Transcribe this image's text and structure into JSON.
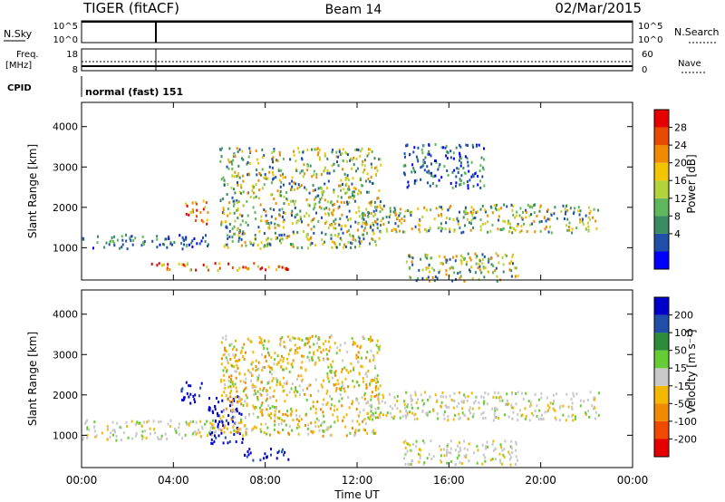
{
  "header": {
    "radar": "TIGER (fitACF)",
    "beam": "Beam 14",
    "date": "02/Mar/2015"
  },
  "strip_panels": {
    "nsky": {
      "label": "N.Sky",
      "ticks": [
        "10^5",
        "10^0"
      ]
    },
    "nsearch": {
      "label": "N.Search",
      "ticks": [
        "10^5",
        "10^0"
      ]
    },
    "freq": {
      "label_lines": [
        "Freq.",
        "[MHz]"
      ],
      "ticks": [
        "18",
        "8"
      ]
    },
    "nave": {
      "label": "Nave",
      "ticks": [
        "60",
        "0"
      ]
    },
    "cpid": {
      "label": "CPID",
      "value": "normal (fast) 151"
    }
  },
  "colors": {
    "power": [
      "#0000ff",
      "#1f4fa8",
      "#3a8a62",
      "#5fb85b",
      "#b4d23a",
      "#f2c500",
      "#f08a00",
      "#e84b00",
      "#e60000"
    ],
    "velocity": [
      "#e60000",
      "#f04a00",
      "#f08a00",
      "#f5b700",
      "#c8c8c8",
      "#66cc33",
      "#2e8b3a",
      "#1f4fa8",
      "#0000cc"
    ]
  },
  "chart_data": [
    {
      "type": "heatmap",
      "name": "power",
      "ylabel": "Slant Range [km]",
      "yticks": [
        "1000",
        "2000",
        "3000",
        "4000"
      ],
      "ylim": [
        200,
        4600
      ],
      "x_tick_labels": [
        "00:00",
        "04:00",
        "08:00",
        "12:00",
        "16:00",
        "20:00",
        "00:00"
      ],
      "xlim_hours": [
        0,
        24
      ],
      "colorbar": {
        "label": "Power [dB]",
        "ticks": [
          "28",
          "24",
          "20",
          "16",
          "12",
          "8",
          "4"
        ],
        "range": [
          0,
          30
        ]
      },
      "bands": [
        {
          "t0": 0.0,
          "t1": 5.5,
          "r0": 1000,
          "r1": 1350,
          "level": "low"
        },
        {
          "t0": 3.0,
          "t1": 9.0,
          "r0": 450,
          "r1": 650,
          "level": "high"
        },
        {
          "t0": 4.5,
          "t1": 5.5,
          "r0": 1600,
          "r1": 2200,
          "level": "high"
        },
        {
          "t0": 6.0,
          "t1": 13.0,
          "r0": 1000,
          "r1": 3500,
          "level": "mid"
        },
        {
          "t0": 12.0,
          "t1": 22.5,
          "r0": 1400,
          "r1": 2100,
          "level": "mid"
        },
        {
          "t0": 14.0,
          "t1": 19.0,
          "r0": 200,
          "r1": 900,
          "level": "mid"
        },
        {
          "t0": 14.0,
          "t1": 17.5,
          "r0": 2500,
          "r1": 3600,
          "level": "low"
        }
      ]
    },
    {
      "type": "heatmap",
      "name": "velocity",
      "ylabel": "Slant Range [km]",
      "yticks": [
        "1000",
        "2000",
        "3000",
        "4000"
      ],
      "ylim": [
        200,
        4600
      ],
      "x_tick_labels": [
        "00:00",
        "04:00",
        "08:00",
        "12:00",
        "16:00",
        "20:00",
        "00:00"
      ],
      "xlim_hours": [
        0,
        24
      ],
      "xlabel": "Time UT",
      "colorbar": {
        "label": "Velocity [m s⁻¹]",
        "ticks": [
          "200",
          "100",
          "50",
          "15",
          "-15",
          "-50",
          "-100",
          "-200"
        ],
        "range": [
          -250,
          250
        ]
      },
      "bands": [
        {
          "t0": 0.0,
          "t1": 6.0,
          "r0": 900,
          "r1": 1400,
          "level": "ground"
        },
        {
          "t0": 4.3,
          "t1": 5.2,
          "r0": 1800,
          "r1": 2400,
          "level": "toward"
        },
        {
          "t0": 5.5,
          "t1": 7.0,
          "r0": 800,
          "r1": 2000,
          "level": "toward"
        },
        {
          "t0": 7.0,
          "t1": 9.0,
          "r0": 400,
          "r1": 700,
          "level": "toward"
        },
        {
          "t0": 6.0,
          "t1": 13.0,
          "r0": 1000,
          "r1": 3500,
          "level": "away"
        },
        {
          "t0": 12.0,
          "t1": 22.5,
          "r0": 1400,
          "r1": 2100,
          "level": "ground"
        },
        {
          "t0": 14.0,
          "t1": 19.0,
          "r0": 300,
          "r1": 900,
          "level": "ground"
        }
      ]
    }
  ]
}
